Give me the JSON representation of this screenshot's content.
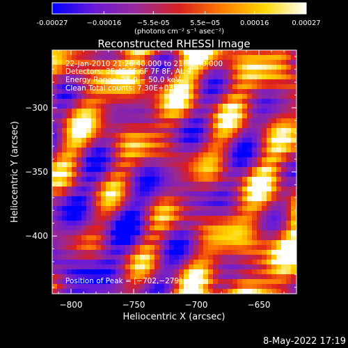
{
  "chart_data": {
    "type": "heatmap",
    "title": "Reconstructed RHESSI Image",
    "xlabel": "Heliocentric X (arcsec)",
    "ylabel": "Heliocentric Y (arcsec)",
    "xlim": [
      -815,
      -620
    ],
    "ylim": [
      -445,
      -255
    ],
    "x_ticks": [
      -800,
      -750,
      -700,
      -650
    ],
    "y_ticks": [
      -300,
      -350,
      -400
    ],
    "x_tick_labels": [
      "−800",
      "−750",
      "−700",
      "−650"
    ],
    "y_tick_labels": [
      "−300",
      "−350",
      "−400"
    ],
    "colorbar": {
      "range": [
        -0.00027,
        0.00027
      ],
      "ticks": [
        -0.00027,
        -0.00016,
        -5.5e-05,
        5.5e-05,
        0.00016,
        0.00027
      ],
      "tick_labels": [
        "-0.00027",
        "−0.00016",
        "−5.5e-05",
        "5.5e−05",
        "0.00016",
        "0.00027"
      ],
      "unit_label": "(photons cm⁻² s⁻¹ asec⁻²)",
      "colors": [
        "#0000ff",
        "#6a1ad8",
        "#9a2a9a",
        "#d82020",
        "#ff7a00",
        "#ffd800",
        "#ffffff"
      ]
    },
    "annotations": {
      "time_range": "22-Jan-2010 21:26:40.000 to 21:32:40.000",
      "detectors": "Detectors: 3F 4F 5F 6F 7F 8F, AL 9",
      "energy": "Energy Range: 25.0 − 50.0 keV",
      "clean": "Clean    Total counts: 7.30E+03",
      "peak": "Position of Peak = [−702,−279]"
    },
    "peak_position": [
      -702,
      -279
    ],
    "grid": false
  },
  "footer": {
    "date": "8-May-2022 17:19"
  }
}
